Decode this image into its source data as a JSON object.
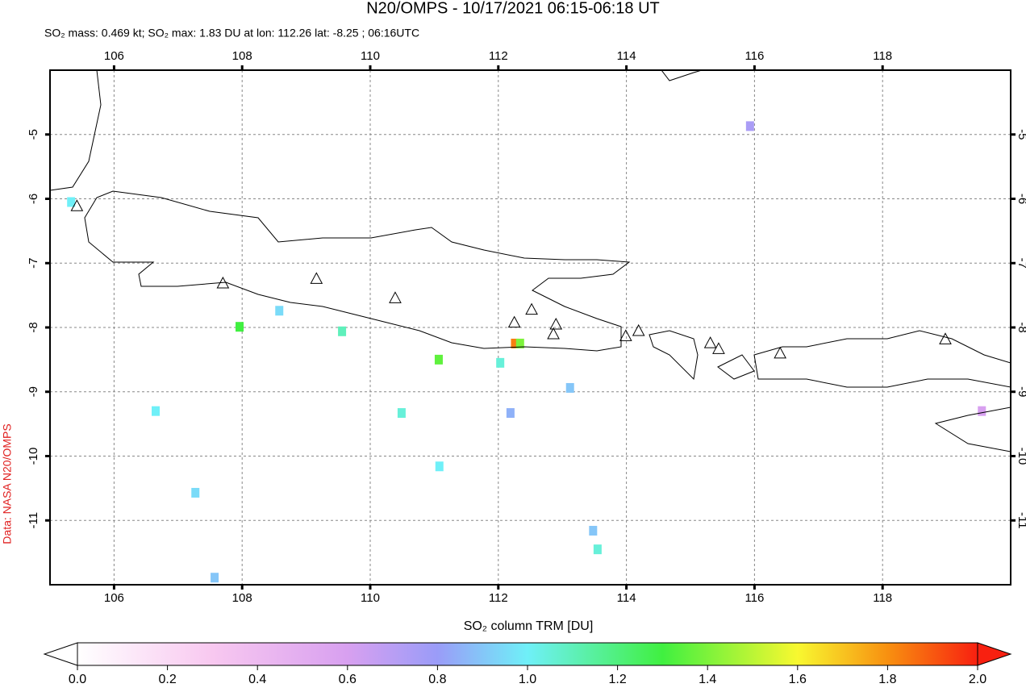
{
  "chart_data": {
    "type": "map",
    "title": "N20/OMPS - 10/17/2021 06:15-06:18 UT",
    "subtitle": "SO₂ mass: 0.469 kt; SO₂ max: 1.83 DU at lon: 112.26 lat: -8.25 ; 06:16UTC",
    "side_label": "Data: NASA N20/OMPS",
    "colorbar_label": "SO₂ column TRM [DU]",
    "xlim": [
      105,
      120
    ],
    "ylim": [
      -12,
      -4
    ],
    "xticks": [
      106,
      108,
      110,
      112,
      114,
      116,
      118
    ],
    "yticks": [
      -5,
      -6,
      -7,
      -8,
      -9,
      -10,
      -11
    ],
    "grid": true,
    "clim": [
      0,
      2
    ],
    "cticks": [
      {
        "value": 0,
        "label": "0.0"
      },
      {
        "value": 0.2,
        "label": "0.2"
      },
      {
        "value": 0.4,
        "label": "0.4"
      },
      {
        "value": 0.6,
        "label": "0.6"
      },
      {
        "value": 0.8,
        "label": "0.8"
      },
      {
        "value": 1,
        "label": "1.0"
      },
      {
        "value": 1.2,
        "label": "1.2"
      },
      {
        "value": 1.4,
        "label": "1.4"
      },
      {
        "value": 1.6,
        "label": "1.6"
      },
      {
        "value": 1.8,
        "label": "1.8"
      },
      {
        "value": 2,
        "label": "2.0"
      }
    ],
    "pixels": {
      "lon": [
        112.26,
        112.34,
        111.07,
        107.96,
        105.33,
        109.56,
        113.55,
        112.03,
        110.49,
        111.08,
        113.48,
        112.19,
        106.65,
        107.27,
        107.57,
        113.12,
        108.58,
        115.93,
        119.55
      ],
      "lat": [
        -8.25,
        -8.25,
        -8.5,
        -7.99,
        -6.05,
        -8.06,
        -11.45,
        -8.55,
        -9.33,
        -10.16,
        -11.16,
        -9.33,
        -9.3,
        -10.57,
        -11.89,
        -8.94,
        -7.74,
        -4.87,
        -9.3
      ],
      "values": [
        1.83,
        1.4,
        1.35,
        1.3,
        1.0,
        1.1,
        1.05,
        1.05,
        1.05,
        1.0,
        0.9,
        0.85,
        1.0,
        0.95,
        0.9,
        0.9,
        0.95,
        0.75,
        0.6
      ]
    },
    "volcanoes": {
      "lon": [
        105.42,
        107.7,
        109.16,
        110.39,
        112.25,
        112.52,
        112.9,
        112.86,
        113.99,
        114.19,
        115.31,
        115.44,
        116.4,
        118.98
      ],
      "lat": [
        -6.11,
        -7.31,
        -7.24,
        -7.54,
        -7.92,
        -7.72,
        -7.95,
        -8.1,
        -8.13,
        -8.05,
        -8.24,
        -8.33,
        -8.4,
        -8.18
      ]
    }
  }
}
